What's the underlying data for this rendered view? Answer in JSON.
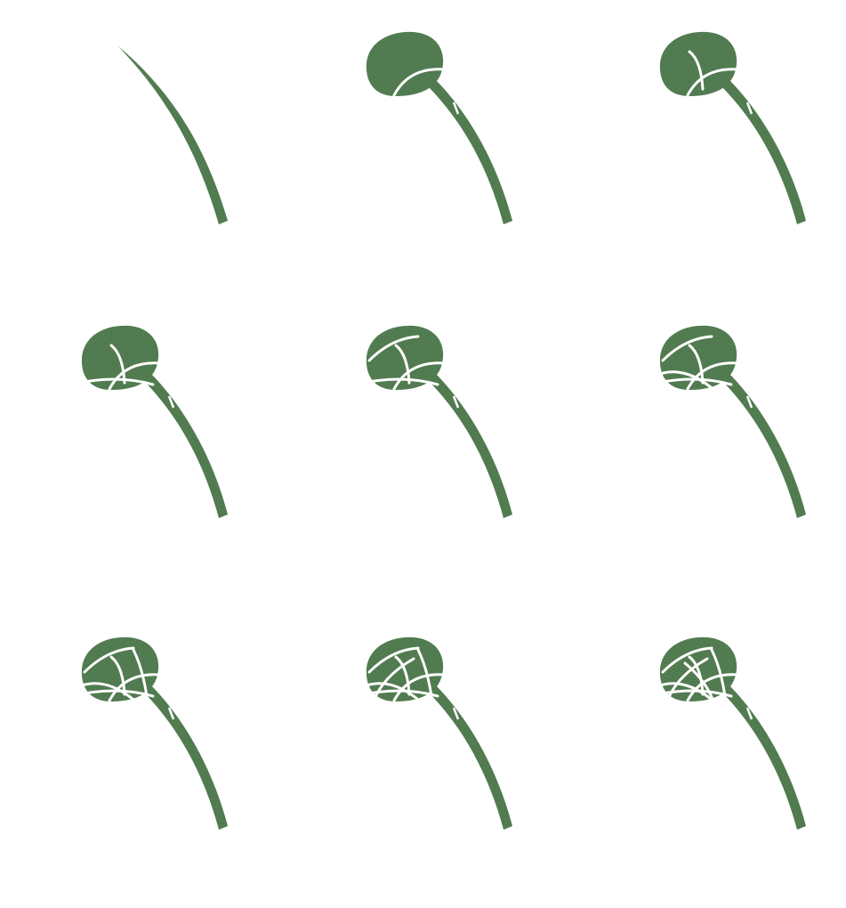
{
  "figure": {
    "panels": [
      {
        "arcs": 0,
        "has_cap": false
      },
      {
        "arcs": 1,
        "has_cap": true
      },
      {
        "arcs": 2,
        "has_cap": true
      },
      {
        "arcs": 3,
        "has_cap": true
      },
      {
        "arcs": 4,
        "has_cap": true
      },
      {
        "arcs": 5,
        "has_cap": true
      },
      {
        "arcs": 6,
        "has_cap": true
      },
      {
        "arcs": 7,
        "has_cap": true
      },
      {
        "arcs": 8,
        "has_cap": true
      }
    ],
    "colors": {
      "leaf": "#5f8f5e",
      "leaf_dark": "#4f7c4f",
      "leaf_light": "#7aa978",
      "background": "#ffffff",
      "cut": "#ffffff"
    }
  }
}
